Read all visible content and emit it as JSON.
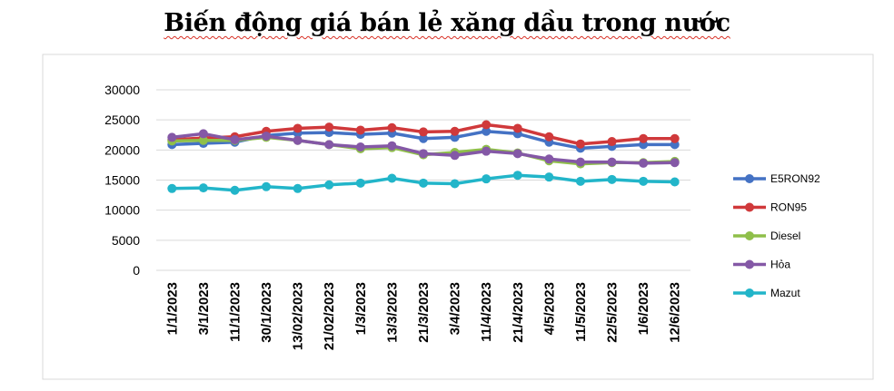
{
  "chart_data": {
    "type": "line",
    "title": "Biến động giá bán lẻ xăng dầu trong nước",
    "xlabel": "",
    "ylabel": "",
    "ylim": [
      0,
      30000
    ],
    "yticks": [
      "0",
      "5000",
      "10000",
      "15000",
      "20000",
      "25000",
      "30000"
    ],
    "grid": true,
    "legend": "right",
    "x": [
      "1/1/2023",
      "3/1/2023",
      "11/1/2023",
      "30/1/2023",
      "13/02/2023",
      "21/02/2023",
      "1/3/2023",
      "13/3/2023",
      "21/3/2023",
      "3/4/2023",
      "11/4/2023",
      "21/4/2023",
      "4/5/2023",
      "11/5/2023",
      "22/5/2023",
      "1/6/2023",
      "12/6/2023"
    ],
    "series": [
      {
        "name": "E5RON92",
        "color": "#4472c4",
        "values": [
          20900,
          21100,
          21300,
          22400,
          22800,
          22900,
          22600,
          22800,
          21900,
          22100,
          23100,
          22700,
          21300,
          20300,
          20600,
          20900,
          20900
        ]
      },
      {
        "name": "RON95",
        "color": "#d0393b",
        "values": [
          21700,
          22000,
          22200,
          23100,
          23600,
          23800,
          23300,
          23700,
          23000,
          23100,
          24200,
          23600,
          22200,
          21000,
          21400,
          21900,
          21900
        ]
      },
      {
        "name": "Diesel",
        "color": "#8fbf4a",
        "values": [
          21500,
          21600,
          21600,
          22100,
          21600,
          20900,
          20200,
          20400,
          19200,
          19600,
          20100,
          19500,
          18200,
          17700,
          17900,
          17900,
          18100
        ]
      },
      {
        "name": "Hỏa",
        "color": "#8458a6",
        "values": [
          22100,
          22700,
          21700,
          22300,
          21600,
          20900,
          20500,
          20700,
          19400,
          19100,
          19800,
          19400,
          18500,
          18000,
          18000,
          17800,
          17900
        ]
      },
      {
        "name": "Mazut",
        "color": "#22b5c9",
        "values": [
          13600,
          13700,
          13300,
          13900,
          13600,
          14200,
          14500,
          15300,
          14500,
          14400,
          15200,
          15800,
          15500,
          14800,
          15100,
          14800,
          14700
        ]
      }
    ]
  }
}
